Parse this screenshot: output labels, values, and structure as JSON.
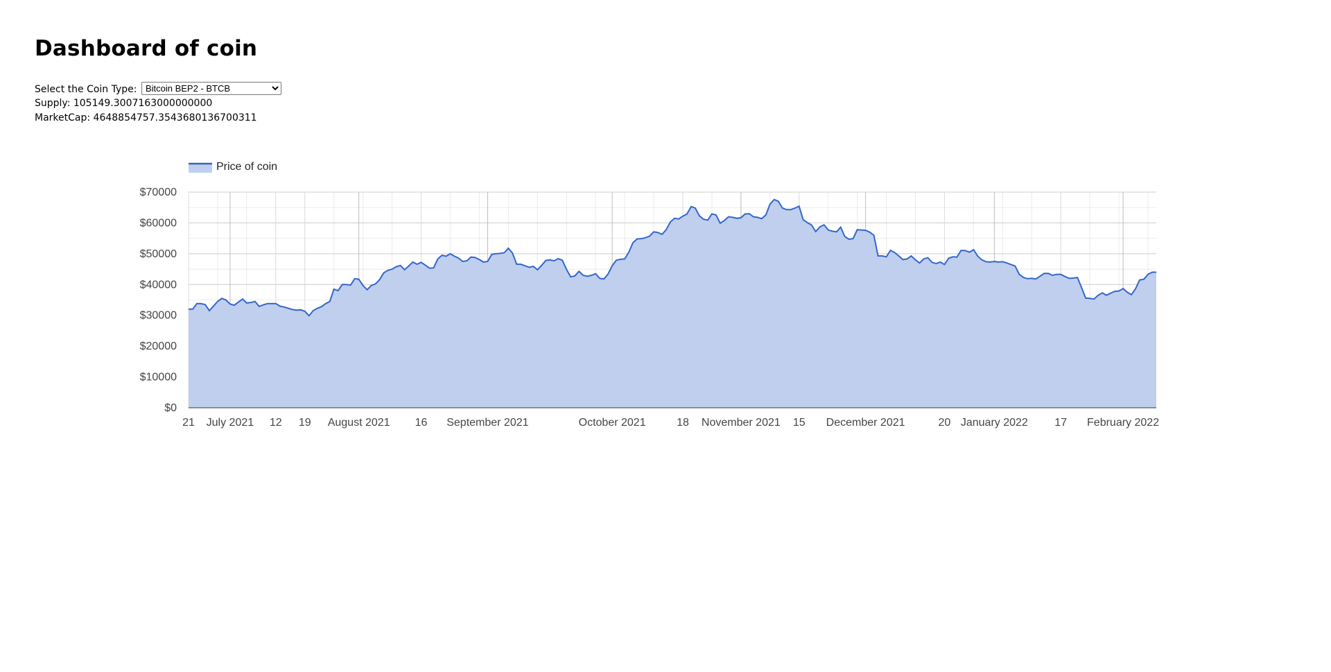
{
  "page": {
    "title": "Dashboard of coin",
    "select_label": "Select the Coin Type:",
    "selected_coin": "Bitcoin BEP2 - BTCB",
    "supply_label": "Supply:",
    "supply_value": "105149.3007163000000000",
    "marketcap_label": "MarketCap:",
    "marketcap_value": "4648854757.3543680136700311"
  },
  "colors": {
    "line": "#3366cc",
    "fill": "#c0cfee",
    "grid": "#cccccc",
    "minor_grid": "#ebebeb",
    "text": "#444444"
  },
  "chart_data": {
    "type": "area",
    "legend": {
      "label": "Price of coin",
      "position": "top-left"
    },
    "grid": true,
    "ylim": [
      0,
      70000
    ],
    "y_ticks": [
      0,
      10000,
      20000,
      30000,
      40000,
      50000,
      60000,
      70000
    ],
    "y_tick_labels": [
      "$0",
      "$10000",
      "$20000",
      "$30000",
      "$40000",
      "$50000",
      "$60000",
      "$70000"
    ],
    "x_range": [
      "2021-06-21",
      "2022-02-05"
    ],
    "x_tick_dates": [
      "2021-06-21",
      "2021-07-01",
      "2021-07-12",
      "2021-07-19",
      "2021-08-01",
      "2021-08-16",
      "2021-09-01",
      "2021-10-01",
      "2021-10-18",
      "2021-11-01",
      "2021-11-15",
      "2021-12-01",
      "2021-12-20",
      "2022-01-01",
      "2022-01-17",
      "2022-02-01"
    ],
    "x_tick_labels": [
      "21",
      "July 2021",
      "12",
      "19",
      "August 2021",
      "16",
      "September 2021",
      "October 2021",
      "18",
      "November 2021",
      "15",
      "December 2021",
      "20",
      "January 2022",
      "17",
      "February 2022"
    ],
    "series": [
      {
        "name": "Price of coin",
        "points": [
          [
            "2021-06-21",
            32000
          ],
          [
            "2021-06-22",
            32000
          ],
          [
            "2021-06-23",
            33800
          ],
          [
            "2021-06-24",
            33800
          ],
          [
            "2021-06-25",
            33500
          ],
          [
            "2021-06-26",
            31500
          ],
          [
            "2021-06-27",
            33000
          ],
          [
            "2021-06-28",
            34500
          ],
          [
            "2021-06-29",
            35500
          ],
          [
            "2021-06-30",
            35000
          ],
          [
            "2021-07-01",
            33700
          ],
          [
            "2021-07-02",
            33300
          ],
          [
            "2021-07-03",
            34300
          ],
          [
            "2021-07-04",
            35300
          ],
          [
            "2021-07-05",
            34000
          ],
          [
            "2021-07-06",
            34200
          ],
          [
            "2021-07-07",
            34500
          ],
          [
            "2021-07-08",
            32900
          ],
          [
            "2021-07-09",
            33400
          ],
          [
            "2021-07-10",
            33800
          ],
          [
            "2021-07-11",
            33800
          ],
          [
            "2021-07-12",
            33800
          ],
          [
            "2021-07-13",
            33000
          ],
          [
            "2021-07-14",
            32700
          ],
          [
            "2021-07-15",
            32300
          ],
          [
            "2021-07-16",
            31900
          ],
          [
            "2021-07-17",
            31700
          ],
          [
            "2021-07-18",
            31800
          ],
          [
            "2021-07-19",
            31300
          ],
          [
            "2021-07-20",
            29900
          ],
          [
            "2021-07-21",
            31500
          ],
          [
            "2021-07-22",
            32300
          ],
          [
            "2021-07-23",
            32800
          ],
          [
            "2021-07-24",
            33800
          ],
          [
            "2021-07-25",
            34500
          ],
          [
            "2021-07-26",
            38500
          ],
          [
            "2021-07-27",
            38000
          ],
          [
            "2021-07-28",
            40000
          ],
          [
            "2021-07-29",
            40000
          ],
          [
            "2021-07-30",
            39800
          ],
          [
            "2021-07-31",
            41900
          ],
          [
            "2021-08-01",
            41700
          ],
          [
            "2021-08-02",
            39700
          ],
          [
            "2021-08-03",
            38300
          ],
          [
            "2021-08-04",
            39700
          ],
          [
            "2021-08-05",
            40200
          ],
          [
            "2021-08-06",
            41600
          ],
          [
            "2021-08-07",
            43800
          ],
          [
            "2021-08-08",
            44600
          ],
          [
            "2021-08-09",
            45000
          ],
          [
            "2021-08-10",
            45800
          ],
          [
            "2021-08-11",
            46200
          ],
          [
            "2021-08-12",
            44800
          ],
          [
            "2021-08-13",
            46000
          ],
          [
            "2021-08-14",
            47300
          ],
          [
            "2021-08-15",
            46600
          ],
          [
            "2021-08-16",
            47200
          ],
          [
            "2021-08-17",
            46300
          ],
          [
            "2021-08-18",
            45300
          ],
          [
            "2021-08-19",
            45400
          ],
          [
            "2021-08-20",
            48300
          ],
          [
            "2021-08-21",
            49500
          ],
          [
            "2021-08-22",
            49200
          ],
          [
            "2021-08-23",
            50000
          ],
          [
            "2021-08-24",
            49200
          ],
          [
            "2021-08-25",
            48600
          ],
          [
            "2021-08-26",
            47500
          ],
          [
            "2021-08-27",
            47700
          ],
          [
            "2021-08-28",
            48900
          ],
          [
            "2021-08-29",
            48800
          ],
          [
            "2021-08-30",
            48100
          ],
          [
            "2021-08-31",
            47300
          ],
          [
            "2021-09-01",
            47500
          ],
          [
            "2021-09-02",
            49800
          ],
          [
            "2021-09-03",
            50000
          ],
          [
            "2021-09-04",
            50100
          ],
          [
            "2021-09-05",
            50300
          ],
          [
            "2021-09-06",
            51800
          ],
          [
            "2021-09-07",
            50200
          ],
          [
            "2021-09-08",
            46600
          ],
          [
            "2021-09-09",
            46600
          ],
          [
            "2021-09-10",
            46100
          ],
          [
            "2021-09-11",
            45600
          ],
          [
            "2021-09-12",
            45900
          ],
          [
            "2021-09-13",
            44800
          ],
          [
            "2021-09-14",
            46200
          ],
          [
            "2021-09-15",
            47800
          ],
          [
            "2021-09-16",
            48000
          ],
          [
            "2021-09-17",
            47700
          ],
          [
            "2021-09-18",
            48400
          ],
          [
            "2021-09-19",
            47900
          ],
          [
            "2021-09-20",
            44900
          ],
          [
            "2021-09-21",
            42500
          ],
          [
            "2021-09-22",
            42800
          ],
          [
            "2021-09-23",
            44300
          ],
          [
            "2021-09-24",
            43000
          ],
          [
            "2021-09-25",
            42700
          ],
          [
            "2021-09-26",
            43000
          ],
          [
            "2021-09-27",
            43500
          ],
          [
            "2021-09-28",
            42000
          ],
          [
            "2021-09-29",
            41800
          ],
          [
            "2021-09-30",
            43400
          ],
          [
            "2021-10-01",
            46100
          ],
          [
            "2021-10-02",
            47900
          ],
          [
            "2021-10-03",
            48200
          ],
          [
            "2021-10-04",
            48300
          ],
          [
            "2021-10-05",
            50500
          ],
          [
            "2021-10-06",
            53600
          ],
          [
            "2021-10-07",
            54800
          ],
          [
            "2021-10-08",
            54900
          ],
          [
            "2021-10-09",
            55200
          ],
          [
            "2021-10-10",
            55700
          ],
          [
            "2021-10-11",
            57100
          ],
          [
            "2021-10-12",
            56900
          ],
          [
            "2021-10-13",
            56300
          ],
          [
            "2021-10-14",
            57800
          ],
          [
            "2021-10-15",
            60300
          ],
          [
            "2021-10-16",
            61500
          ],
          [
            "2021-10-17",
            61300
          ],
          [
            "2021-10-18",
            62200
          ],
          [
            "2021-10-19",
            62900
          ],
          [
            "2021-10-20",
            65300
          ],
          [
            "2021-10-21",
            64800
          ],
          [
            "2021-10-22",
            62300
          ],
          [
            "2021-10-23",
            61200
          ],
          [
            "2021-10-24",
            60900
          ],
          [
            "2021-10-25",
            62900
          ],
          [
            "2021-10-26",
            62600
          ],
          [
            "2021-10-27",
            59900
          ],
          [
            "2021-10-28",
            60800
          ],
          [
            "2021-10-29",
            62000
          ],
          [
            "2021-10-30",
            61800
          ],
          [
            "2021-10-31",
            61500
          ],
          [
            "2021-11-01",
            61700
          ],
          [
            "2021-11-02",
            62900
          ],
          [
            "2021-11-03",
            63000
          ],
          [
            "2021-11-04",
            62000
          ],
          [
            "2021-11-05",
            61800
          ],
          [
            "2021-11-06",
            61400
          ],
          [
            "2021-11-07",
            62600
          ],
          [
            "2021-11-08",
            66100
          ],
          [
            "2021-11-09",
            67600
          ],
          [
            "2021-11-10",
            67000
          ],
          [
            "2021-11-11",
            64800
          ],
          [
            "2021-11-12",
            64300
          ],
          [
            "2021-11-13",
            64300
          ],
          [
            "2021-11-14",
            64800
          ],
          [
            "2021-11-15",
            65400
          ],
          [
            "2021-11-16",
            61000
          ],
          [
            "2021-11-17",
            60100
          ],
          [
            "2021-11-18",
            59300
          ],
          [
            "2021-11-19",
            57200
          ],
          [
            "2021-11-20",
            58700
          ],
          [
            "2021-11-21",
            59400
          ],
          [
            "2021-11-22",
            57700
          ],
          [
            "2021-11-23",
            57300
          ],
          [
            "2021-11-24",
            57100
          ],
          [
            "2021-11-25",
            58600
          ],
          [
            "2021-11-26",
            55600
          ],
          [
            "2021-11-27",
            54700
          ],
          [
            "2021-11-28",
            54900
          ],
          [
            "2021-11-29",
            57800
          ],
          [
            "2021-11-30",
            57700
          ],
          [
            "2021-12-01",
            57600
          ],
          [
            "2021-12-02",
            57000
          ],
          [
            "2021-12-03",
            56000
          ],
          [
            "2021-12-04",
            49300
          ],
          [
            "2021-12-05",
            49300
          ],
          [
            "2021-12-06",
            49000
          ],
          [
            "2021-12-07",
            51100
          ],
          [
            "2021-12-08",
            50400
          ],
          [
            "2021-12-09",
            49300
          ],
          [
            "2021-12-10",
            48100
          ],
          [
            "2021-12-11",
            48300
          ],
          [
            "2021-12-12",
            49300
          ],
          [
            "2021-12-13",
            48000
          ],
          [
            "2021-12-14",
            47000
          ],
          [
            "2021-12-15",
            48300
          ],
          [
            "2021-12-16",
            48700
          ],
          [
            "2021-12-17",
            47200
          ],
          [
            "2021-12-18",
            46800
          ],
          [
            "2021-12-19",
            47300
          ],
          [
            "2021-12-20",
            46500
          ],
          [
            "2021-12-21",
            48500
          ],
          [
            "2021-12-22",
            49000
          ],
          [
            "2021-12-23",
            48900
          ],
          [
            "2021-12-24",
            51100
          ],
          [
            "2021-12-25",
            51000
          ],
          [
            "2021-12-26",
            50500
          ],
          [
            "2021-12-27",
            51300
          ],
          [
            "2021-12-28",
            49200
          ],
          [
            "2021-12-29",
            48000
          ],
          [
            "2021-12-30",
            47400
          ],
          [
            "2021-12-31",
            47300
          ],
          [
            "2022-01-01",
            47500
          ],
          [
            "2022-01-02",
            47300
          ],
          [
            "2022-01-03",
            47400
          ],
          [
            "2022-01-04",
            47000
          ],
          [
            "2022-01-05",
            46500
          ],
          [
            "2022-01-06",
            46000
          ],
          [
            "2022-01-07",
            43300
          ],
          [
            "2022-01-08",
            42300
          ],
          [
            "2022-01-09",
            41900
          ],
          [
            "2022-01-10",
            42000
          ],
          [
            "2022-01-11",
            41800
          ],
          [
            "2022-01-12",
            42700
          ],
          [
            "2022-01-13",
            43600
          ],
          [
            "2022-01-14",
            43600
          ],
          [
            "2022-01-15",
            43000
          ],
          [
            "2022-01-16",
            43300
          ],
          [
            "2022-01-17",
            43300
          ],
          [
            "2022-01-18",
            42600
          ],
          [
            "2022-01-19",
            42000
          ],
          [
            "2022-01-20",
            42100
          ],
          [
            "2022-01-21",
            42300
          ],
          [
            "2022-01-22",
            39000
          ],
          [
            "2022-01-23",
            35600
          ],
          [
            "2022-01-24",
            35500
          ],
          [
            "2022-01-25",
            35300
          ],
          [
            "2022-01-26",
            36500
          ],
          [
            "2022-01-27",
            37300
          ],
          [
            "2022-01-28",
            36500
          ],
          [
            "2022-01-29",
            37200
          ],
          [
            "2022-01-30",
            37800
          ],
          [
            "2022-01-31",
            37900
          ],
          [
            "2022-02-01",
            38700
          ],
          [
            "2022-02-02",
            37500
          ],
          [
            "2022-02-03",
            36700
          ],
          [
            "2022-02-04",
            38600
          ],
          [
            "2022-02-05",
            41500
          ],
          [
            "2022-02-06",
            41700
          ],
          [
            "2022-02-07",
            43300
          ],
          [
            "2022-02-08",
            44000
          ],
          [
            "2022-02-09",
            44000
          ]
        ]
      }
    ]
  }
}
